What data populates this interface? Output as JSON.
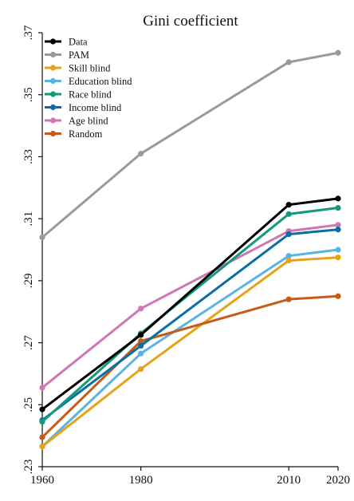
{
  "chart_data": {
    "type": "line",
    "title": "Gini coefficient",
    "xlabel": "",
    "ylabel": "",
    "x": [
      1960,
      1980,
      2010,
      2020
    ],
    "xlim": [
      1960,
      2020
    ],
    "ylim": [
      0.23,
      0.37
    ],
    "x_ticks": [
      1960,
      1980,
      2010,
      2020
    ],
    "y_ticks": [
      0.23,
      0.25,
      0.27,
      0.29,
      0.31,
      0.33,
      0.35,
      0.37
    ],
    "y_tick_labels": [
      ".23",
      ".25",
      ".27",
      ".29",
      ".31",
      ".33",
      ".35",
      ".37"
    ],
    "legend_position": "top-left",
    "grid": false,
    "series": [
      {
        "name": "Data",
        "color": "#000000",
        "values": [
          0.2485,
          0.2725,
          0.3145,
          0.3165
        ]
      },
      {
        "name": "PAM",
        "color": "#9a9a9a",
        "values": [
          0.304,
          0.331,
          0.3605,
          0.3635
        ]
      },
      {
        "name": "Skill blind",
        "color": "#e6a317",
        "values": [
          0.2365,
          0.2615,
          0.2965,
          0.2975
        ]
      },
      {
        "name": "Education blind",
        "color": "#5ab4e3",
        "values": [
          0.2365,
          0.2665,
          0.298,
          0.3
        ]
      },
      {
        "name": "Race blind",
        "color": "#139a7a",
        "values": [
          0.2445,
          0.273,
          0.3115,
          0.3135
        ]
      },
      {
        "name": "Income blind",
        "color": "#0a6ea6",
        "values": [
          0.245,
          0.269,
          0.305,
          0.3065
        ]
      },
      {
        "name": "Age blind",
        "color": "#cf76b5",
        "values": [
          0.2555,
          0.281,
          0.306,
          0.308
        ]
      },
      {
        "name": "Random",
        "color": "#c85a18",
        "values": [
          0.2395,
          0.2705,
          0.284,
          0.285
        ]
      }
    ]
  }
}
